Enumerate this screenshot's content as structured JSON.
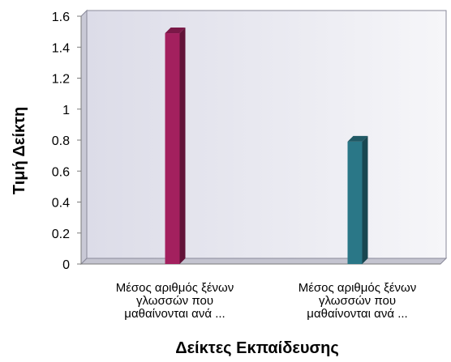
{
  "chart_data": {
    "type": "bar",
    "title": "",
    "xlabel": "Δείκτες Εκπαίδευσης",
    "ylabel": "Τιμή Δείκτη",
    "ylim": [
      0,
      1.6
    ],
    "yticks": [
      "0",
      "0.2",
      "0.4",
      "0.6",
      "0.8",
      "1",
      "1.2",
      "1.4",
      "1.6"
    ],
    "grid": false,
    "categories": [
      [
        "Μέσος αριθμός ξένων",
        "γλωσσών που",
        "μαθαίνονται ανά ..."
      ],
      [
        "Μέσος αριθμός ξένων",
        "γλωσσών που",
        "μαθαίνονται ανά ..."
      ]
    ],
    "values": [
      1.49,
      0.79
    ],
    "colors": [
      "#a3205e",
      "#2a7787"
    ]
  }
}
